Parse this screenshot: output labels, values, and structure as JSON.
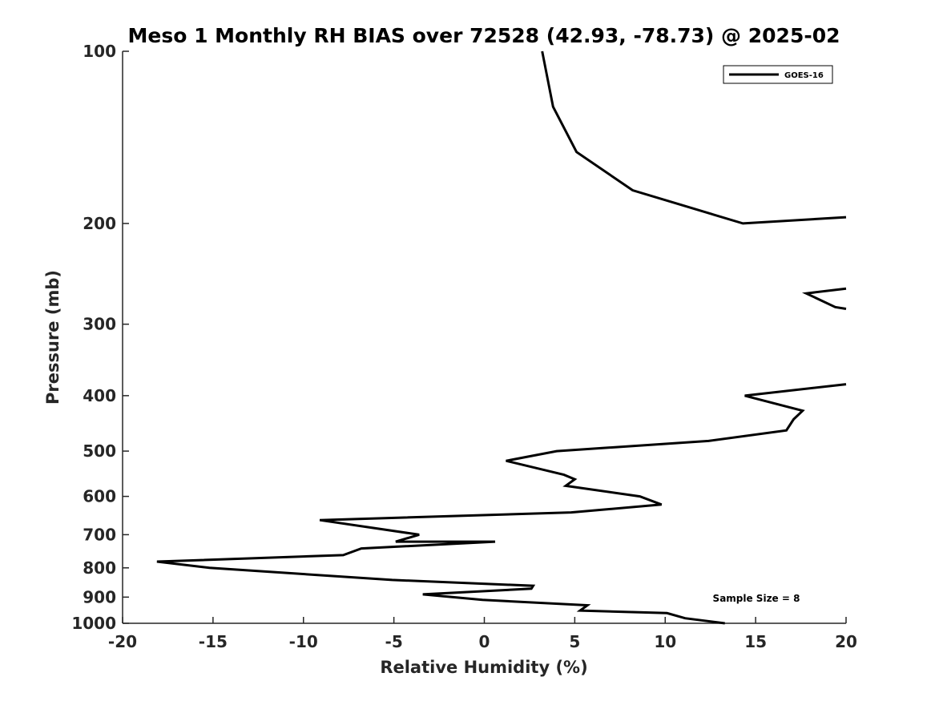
{
  "chart_data": {
    "type": "line",
    "title": "Meso 1 Monthly RH BIAS over 72528 (42.93, -78.73) @ 2025-02",
    "xlabel": "Relative Humidity (%)",
    "ylabel": "Pressure (mb)",
    "xlim": [
      -20,
      20
    ],
    "ylim": [
      100,
      1000
    ],
    "y_scale": "log",
    "y_reversed": true,
    "grid": false,
    "legend_placement": "top-right",
    "x_tick_labels": [
      "-20",
      "-15",
      "-10",
      "-5",
      "0",
      "5",
      "10",
      "15",
      "20"
    ],
    "x_ticks": [
      -20,
      -15,
      -10,
      -5,
      0,
      5,
      10,
      15,
      20
    ],
    "y_ticks": [
      100,
      200,
      300,
      400,
      500,
      600,
      700,
      800,
      900,
      1000
    ],
    "y_tick_labels": [
      "100",
      "200",
      "300",
      "400",
      "500",
      "600",
      "700",
      "800",
      "900",
      "1000"
    ],
    "annotation": "Sample Size = 8",
    "series": [
      {
        "name": "GOES-16",
        "color": "#000000",
        "segments": [
          [
            [
              3.2,
              100
            ],
            [
              3.8,
              125
            ],
            [
              5.1,
              150
            ],
            [
              8.2,
              175
            ],
            [
              14.3,
              200
            ],
            [
              20.0,
              195
            ]
          ],
          [
            [
              20.0,
              260
            ],
            [
              17.8,
              265
            ],
            [
              19.4,
              280
            ],
            [
              20.0,
              282
            ]
          ],
          [
            [
              20.0,
              382
            ],
            [
              14.4,
              400
            ],
            [
              17.6,
              425
            ],
            [
              17.1,
              440
            ],
            [
              16.7,
              460
            ],
            [
              12.4,
              480
            ],
            [
              4.0,
              500
            ],
            [
              1.2,
              520
            ],
            [
              4.4,
              550
            ],
            [
              5.0,
              560
            ],
            [
              4.5,
              575
            ],
            [
              8.6,
              600
            ],
            [
              9.8,
              620
            ],
            [
              4.8,
              640
            ],
            [
              -9.1,
              660
            ],
            [
              -3.6,
              700
            ],
            [
              -4.9,
              720
            ],
            [
              0.6,
              720
            ],
            [
              -6.8,
              740
            ],
            [
              -7.8,
              760
            ],
            [
              -18.1,
              780
            ],
            [
              -15.2,
              800
            ],
            [
              -5.1,
              840
            ],
            [
              2.7,
              860
            ],
            [
              2.6,
              870
            ],
            [
              -3.4,
              890
            ],
            [
              -0.1,
              910
            ],
            [
              5.7,
              930
            ],
            [
              5.3,
              950
            ],
            [
              10.1,
              960
            ],
            [
              11.1,
              980
            ],
            [
              13.3,
              1000
            ]
          ]
        ]
      }
    ]
  }
}
